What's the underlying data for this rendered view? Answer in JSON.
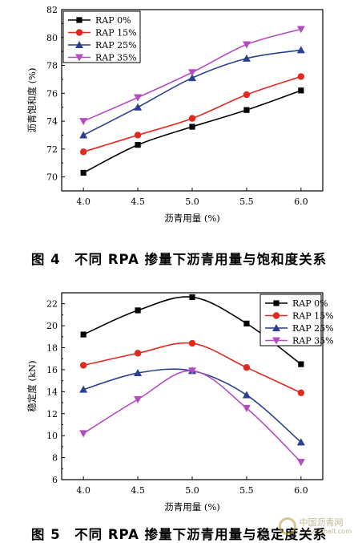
{
  "figures": [
    {
      "caption": "图 4　不同 RPA 掺量下沥青用量与饱和度关系"
    },
    {
      "caption": "图 5　不同 RPA 掺量下沥青用量与稳定度关系"
    }
  ],
  "watermark": {
    "text": "中国沥青网",
    "subtext": "sinoasphalt.com"
  },
  "colors": {
    "rap0": "#000000",
    "rap15": "#e3281e",
    "rap25": "#2a3f8f",
    "rap35": "#b34dbf"
  },
  "chart_data": [
    {
      "type": "line",
      "title": "",
      "xlabel": "沥青用量 (%)",
      "ylabel": "沥青饱和度 (%)",
      "x": [
        4.0,
        4.5,
        5.0,
        5.5,
        6.0
      ],
      "xticks": [
        "4.0",
        "4.5",
        "5.0",
        "5.5",
        "6.0"
      ],
      "xlim": [
        3.8,
        6.2
      ],
      "ylim": [
        69,
        82
      ],
      "yticks": [
        70,
        72,
        74,
        76,
        78,
        80,
        82
      ],
      "legend_position": "top-left",
      "series": [
        {
          "name": "RAP 0%",
          "marker": "square",
          "color": "#000000",
          "values": [
            70.3,
            72.3,
            73.6,
            74.8,
            76.2
          ]
        },
        {
          "name": "RAP 15%",
          "marker": "circle",
          "color": "#e3281e",
          "values": [
            71.8,
            73.0,
            74.2,
            75.9,
            77.2
          ]
        },
        {
          "name": "RAP 25%",
          "marker": "triangle-up",
          "color": "#2a3f8f",
          "values": [
            73.0,
            75.0,
            77.1,
            78.5,
            79.1
          ]
        },
        {
          "name": "RAP 35%",
          "marker": "triangle-down",
          "color": "#b34dbf",
          "values": [
            74.0,
            75.7,
            77.5,
            79.5,
            80.6
          ]
        }
      ]
    },
    {
      "type": "line",
      "title": "",
      "xlabel": "沥青用量 (%)",
      "ylabel": "稳定度 (kN)",
      "x": [
        4.0,
        4.5,
        5.0,
        5.5,
        6.0
      ],
      "xticks": [
        "4.0",
        "4.5",
        "5.0",
        "5.5",
        "6.0"
      ],
      "xlim": [
        3.8,
        6.2
      ],
      "ylim": [
        6,
        23
      ],
      "yticks": [
        6,
        8,
        10,
        12,
        14,
        16,
        18,
        20,
        22
      ],
      "legend_position": "top-right",
      "series": [
        {
          "name": "RAP 0%",
          "marker": "square",
          "color": "#000000",
          "values": [
            19.2,
            21.4,
            22.6,
            20.2,
            16.5
          ]
        },
        {
          "name": "RAP 15%",
          "marker": "circle",
          "color": "#e3281e",
          "values": [
            16.4,
            17.5,
            18.4,
            16.2,
            13.9
          ]
        },
        {
          "name": "RAP 25%",
          "marker": "triangle-up",
          "color": "#2a3f8f",
          "values": [
            14.2,
            15.7,
            15.9,
            13.7,
            9.4
          ]
        },
        {
          "name": "RAP 35%",
          "marker": "triangle-down",
          "color": "#b34dbf",
          "values": [
            10.2,
            13.3,
            15.9,
            12.5,
            7.6
          ]
        }
      ]
    }
  ]
}
